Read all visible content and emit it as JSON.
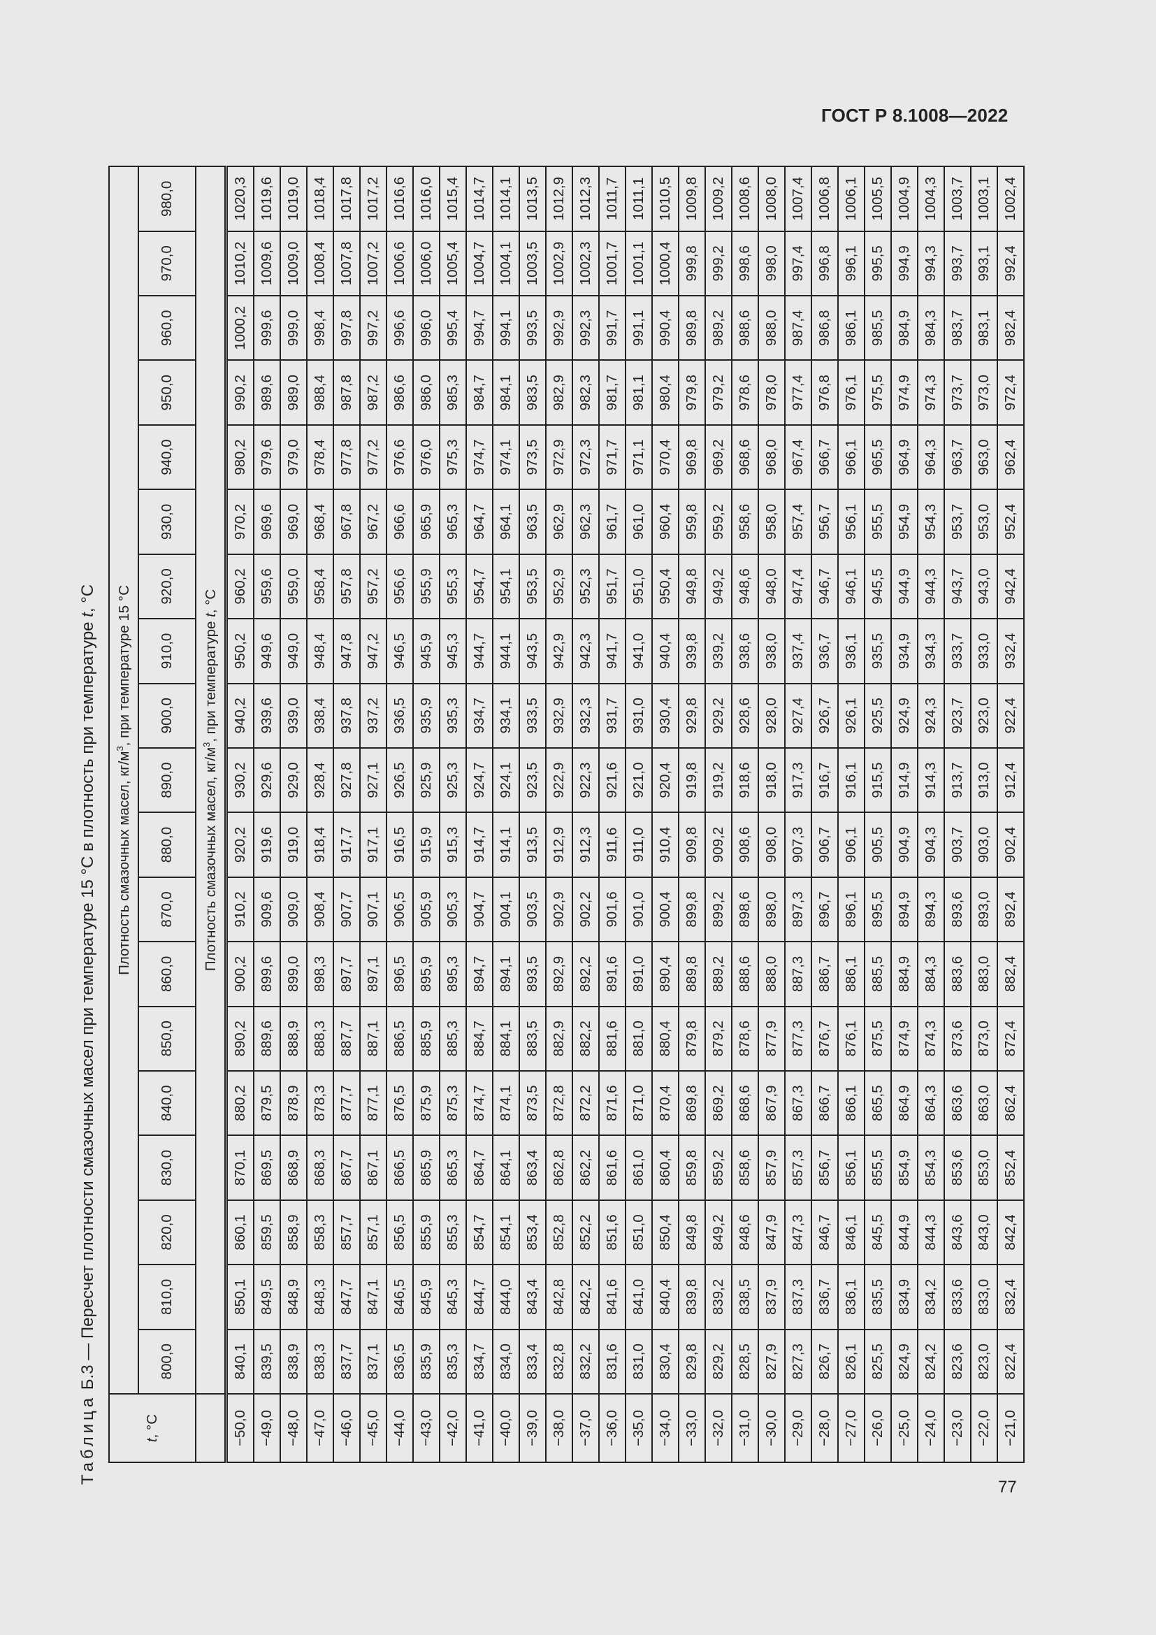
{
  "header": {
    "doc_id": "ГОСТ Р 8.1008—2022"
  },
  "caption": {
    "label": "Таблица",
    "text_pre": " Б.3 — Пересчет плотности смазочных масел при температуре 15 °С в плотность при температуре ",
    "t": "t",
    "text_post": ", °С"
  },
  "table": {
    "t_header": "t, °С",
    "t_header_italic": "t",
    "t_header_rest": ", °С",
    "group_header_pre": "Плотность смазочных масел, кг/м",
    "group_header_sup": "3",
    "group_header_post": ", при температуре 15 °С",
    "sub_header_pre": "Плотность смазочных масел, кг/м",
    "sub_header_sup": "3",
    "sub_header_mid": ", при температуре ",
    "sub_header_t": "t",
    "sub_header_post": ", °С",
    "columns": [
      "800,0",
      "810,0",
      "820,0",
      "830,0",
      "840,0",
      "850,0",
      "860,0",
      "870,0",
      "880,0",
      "890,0",
      "900,0",
      "910,0",
      "920,0",
      "930,0",
      "940,0",
      "950,0",
      "960,0",
      "970,0",
      "980,0"
    ],
    "rows": [
      {
        "t": "−50,0",
        "v": [
          "840,1",
          "850,1",
          "860,1",
          "870,1",
          "880,2",
          "890,2",
          "900,2",
          "910,2",
          "920,2",
          "930,2",
          "940,2",
          "950,2",
          "960,2",
          "970,2",
          "980,2",
          "990,2",
          "1000,2",
          "1010,2",
          "1020,3"
        ]
      },
      {
        "t": "−49,0",
        "v": [
          "839,5",
          "849,5",
          "859,5",
          "869,5",
          "879,5",
          "889,6",
          "899,6",
          "909,6",
          "919,6",
          "929,6",
          "939,6",
          "949,6",
          "959,6",
          "969,6",
          "979,6",
          "989,6",
          "999,6",
          "1009,6",
          "1019,6"
        ]
      },
      {
        "t": "−48,0",
        "v": [
          "838,9",
          "848,9",
          "858,9",
          "868,9",
          "878,9",
          "888,9",
          "899,0",
          "909,0",
          "919,0",
          "929,0",
          "939,0",
          "949,0",
          "959,0",
          "969,0",
          "979,0",
          "989,0",
          "999,0",
          "1009,0",
          "1019,0"
        ]
      },
      {
        "t": "−47,0",
        "v": [
          "838,3",
          "848,3",
          "858,3",
          "868,3",
          "878,3",
          "888,3",
          "898,3",
          "908,4",
          "918,4",
          "928,4",
          "938,4",
          "948,4",
          "958,4",
          "968,4",
          "978,4",
          "988,4",
          "998,4",
          "1008,4",
          "1018,4"
        ]
      },
      {
        "t": "−46,0",
        "v": [
          "837,7",
          "847,7",
          "857,7",
          "867,7",
          "877,7",
          "887,7",
          "897,7",
          "907,7",
          "917,7",
          "927,8",
          "937,8",
          "947,8",
          "957,8",
          "967,8",
          "977,8",
          "987,8",
          "997,8",
          "1007,8",
          "1017,8"
        ]
      },
      {
        "t": "−45,0",
        "v": [
          "837,1",
          "847,1",
          "857,1",
          "867,1",
          "877,1",
          "887,1",
          "897,1",
          "907,1",
          "917,1",
          "927,1",
          "937,2",
          "947,2",
          "957,2",
          "967,2",
          "977,2",
          "987,2",
          "997,2",
          "1007,2",
          "1017,2"
        ]
      },
      {
        "t": "−44,0",
        "v": [
          "836,5",
          "846,5",
          "856,5",
          "866,5",
          "876,5",
          "886,5",
          "896,5",
          "906,5",
          "916,5",
          "926,5",
          "936,5",
          "946,5",
          "956,6",
          "966,6",
          "976,6",
          "986,6",
          "996,6",
          "1006,6",
          "1016,6"
        ]
      },
      {
        "t": "−43,0",
        "v": [
          "835,9",
          "845,9",
          "855,9",
          "865,9",
          "875,9",
          "885,9",
          "895,9",
          "905,9",
          "915,9",
          "925,9",
          "935,9",
          "945,9",
          "955,9",
          "965,9",
          "976,0",
          "986,0",
          "996,0",
          "1006,0",
          "1016,0"
        ]
      },
      {
        "t": "−42,0",
        "v": [
          "835,3",
          "845,3",
          "855,3",
          "865,3",
          "875,3",
          "885,3",
          "895,3",
          "905,3",
          "915,3",
          "925,3",
          "935,3",
          "945,3",
          "955,3",
          "965,3",
          "975,3",
          "985,3",
          "995,4",
          "1005,4",
          "1015,4"
        ]
      },
      {
        "t": "−41,0",
        "v": [
          "834,7",
          "844,7",
          "854,7",
          "864,7",
          "874,7",
          "884,7",
          "894,7",
          "904,7",
          "914,7",
          "924,7",
          "934,7",
          "944,7",
          "954,7",
          "964,7",
          "974,7",
          "984,7",
          "994,7",
          "1004,7",
          "1014,7"
        ]
      },
      {
        "t": "−40,0",
        "v": [
          "834,0",
          "844,0",
          "854,1",
          "864,1",
          "874,1",
          "884,1",
          "894,1",
          "904,1",
          "914,1",
          "924,1",
          "934,1",
          "944,1",
          "954,1",
          "964,1",
          "974,1",
          "984,1",
          "994,1",
          "1004,1",
          "1014,1"
        ]
      },
      {
        "t": "−39,0",
        "v": [
          "833,4",
          "843,4",
          "853,4",
          "863,4",
          "873,5",
          "883,5",
          "893,5",
          "903,5",
          "913,5",
          "923,5",
          "933,5",
          "943,5",
          "953,5",
          "963,5",
          "973,5",
          "983,5",
          "993,5",
          "1003,5",
          "1013,5"
        ]
      },
      {
        "t": "−38,0",
        "v": [
          "832,8",
          "842,8",
          "852,8",
          "862,8",
          "872,8",
          "882,9",
          "892,9",
          "902,9",
          "912,9",
          "922,9",
          "932,9",
          "942,9",
          "952,9",
          "962,9",
          "972,9",
          "982,9",
          "992,9",
          "1002,9",
          "1012,9"
        ]
      },
      {
        "t": "−37,0",
        "v": [
          "832,2",
          "842,2",
          "852,2",
          "862,2",
          "872,2",
          "882,2",
          "892,2",
          "902,2",
          "912,3",
          "922,3",
          "932,3",
          "942,3",
          "952,3",
          "962,3",
          "972,3",
          "982,3",
          "992,3",
          "1002,3",
          "1012,3"
        ]
      },
      {
        "t": "−36,0",
        "v": [
          "831,6",
          "841,6",
          "851,6",
          "861,6",
          "871,6",
          "881,6",
          "891,6",
          "901,6",
          "911,6",
          "921,6",
          "931,7",
          "941,7",
          "951,7",
          "961,7",
          "971,7",
          "981,7",
          "991,7",
          "1001,7",
          "1011,7"
        ]
      },
      {
        "t": "−35,0",
        "v": [
          "831,0",
          "841,0",
          "851,0",
          "861,0",
          "871,0",
          "881,0",
          "891,0",
          "901,0",
          "911,0",
          "921,0",
          "931,0",
          "941,0",
          "951,0",
          "961,0",
          "971,1",
          "981,1",
          "991,1",
          "1001,1",
          "1011,1"
        ]
      },
      {
        "t": "−34,0",
        "v": [
          "830,4",
          "840,4",
          "850,4",
          "860,4",
          "870,4",
          "880,4",
          "890,4",
          "900,4",
          "910,4",
          "920,4",
          "930,4",
          "940,4",
          "950,4",
          "960,4",
          "970,4",
          "980,4",
          "990,4",
          "1000,4",
          "1010,5"
        ]
      },
      {
        "t": "−33,0",
        "v": [
          "829,8",
          "839,8",
          "849,8",
          "859,8",
          "869,8",
          "879,8",
          "889,8",
          "899,8",
          "909,8",
          "919,8",
          "929,8",
          "939,8",
          "949,8",
          "959,8",
          "969,8",
          "979,8",
          "989,8",
          "999,8",
          "1009,8"
        ]
      },
      {
        "t": "−32,0",
        "v": [
          "829,2",
          "839,2",
          "849,2",
          "859,2",
          "869,2",
          "879,2",
          "889,2",
          "899,2",
          "909,2",
          "919,2",
          "929,2",
          "939,2",
          "949,2",
          "959,2",
          "969,2",
          "979,2",
          "989,2",
          "999,2",
          "1009,2"
        ]
      },
      {
        "t": "−31,0",
        "v": [
          "828,5",
          "838,5",
          "848,6",
          "858,6",
          "868,6",
          "878,6",
          "888,6",
          "898,6",
          "908,6",
          "918,6",
          "928,6",
          "938,6",
          "948,6",
          "958,6",
          "968,6",
          "978,6",
          "988,6",
          "998,6",
          "1008,6"
        ]
      },
      {
        "t": "−30,0",
        "v": [
          "827,9",
          "837,9",
          "847,9",
          "857,9",
          "867,9",
          "877,9",
          "888,0",
          "898,0",
          "908,0",
          "918,0",
          "928,0",
          "938,0",
          "948,0",
          "958,0",
          "968,0",
          "978,0",
          "988,0",
          "998,0",
          "1008,0"
        ]
      },
      {
        "t": "−29,0",
        "v": [
          "827,3",
          "837,3",
          "847,3",
          "857,3",
          "867,3",
          "877,3",
          "887,3",
          "897,3",
          "907,3",
          "917,3",
          "927,4",
          "937,4",
          "947,4",
          "957,4",
          "967,4",
          "977,4",
          "987,4",
          "997,4",
          "1007,4"
        ]
      },
      {
        "t": "−28,0",
        "v": [
          "826,7",
          "836,7",
          "846,7",
          "856,7",
          "866,7",
          "876,7",
          "886,7",
          "896,7",
          "906,7",
          "916,7",
          "926,7",
          "936,7",
          "946,7",
          "956,7",
          "966,7",
          "976,8",
          "986,8",
          "996,8",
          "1006,8"
        ]
      },
      {
        "t": "−27,0",
        "v": [
          "826,1",
          "836,1",
          "846,1",
          "856,1",
          "866,1",
          "876,1",
          "886,1",
          "896,1",
          "906,1",
          "916,1",
          "926,1",
          "936,1",
          "946,1",
          "956,1",
          "966,1",
          "976,1",
          "986,1",
          "996,1",
          "1006,1"
        ]
      },
      {
        "t": "−26,0",
        "v": [
          "825,5",
          "835,5",
          "845,5",
          "855,5",
          "865,5",
          "875,5",
          "885,5",
          "895,5",
          "905,5",
          "915,5",
          "925,5",
          "935,5",
          "945,5",
          "955,5",
          "965,5",
          "975,5",
          "985,5",
          "995,5",
          "1005,5"
        ]
      },
      {
        "t": "−25,0",
        "v": [
          "824,9",
          "834,9",
          "844,9",
          "854,9",
          "864,9",
          "874,9",
          "884,9",
          "894,9",
          "904,9",
          "914,9",
          "924,9",
          "934,9",
          "944,9",
          "954,9",
          "964,9",
          "974,9",
          "984,9",
          "994,9",
          "1004,9"
        ]
      },
      {
        "t": "−24,0",
        "v": [
          "824,2",
          "834,2",
          "844,3",
          "854,3",
          "864,3",
          "874,3",
          "884,3",
          "894,3",
          "904,3",
          "914,3",
          "924,3",
          "934,3",
          "944,3",
          "954,3",
          "964,3",
          "974,3",
          "984,3",
          "994,3",
          "1004,3"
        ]
      },
      {
        "t": "−23,0",
        "v": [
          "823,6",
          "833,6",
          "843,6",
          "853,6",
          "863,6",
          "873,6",
          "883,6",
          "893,6",
          "903,7",
          "913,7",
          "923,7",
          "933,7",
          "943,7",
          "953,7",
          "963,7",
          "973,7",
          "983,7",
          "993,7",
          "1003,7"
        ]
      },
      {
        "t": "−22,0",
        "v": [
          "823,0",
          "833,0",
          "843,0",
          "853,0",
          "863,0",
          "873,0",
          "883,0",
          "893,0",
          "903,0",
          "913,0",
          "923,0",
          "933,0",
          "943,0",
          "953,0",
          "963,0",
          "973,0",
          "983,1",
          "993,1",
          "1003,1"
        ]
      },
      {
        "t": "−21,0",
        "v": [
          "822,4",
          "832,4",
          "842,4",
          "852,4",
          "862,4",
          "872,4",
          "882,4",
          "892,4",
          "902,4",
          "912,4",
          "922,4",
          "932,4",
          "942,4",
          "952,4",
          "962,4",
          "972,4",
          "982,4",
          "992,4",
          "1002,4"
        ]
      }
    ]
  },
  "footer": {
    "page_number": "77"
  }
}
